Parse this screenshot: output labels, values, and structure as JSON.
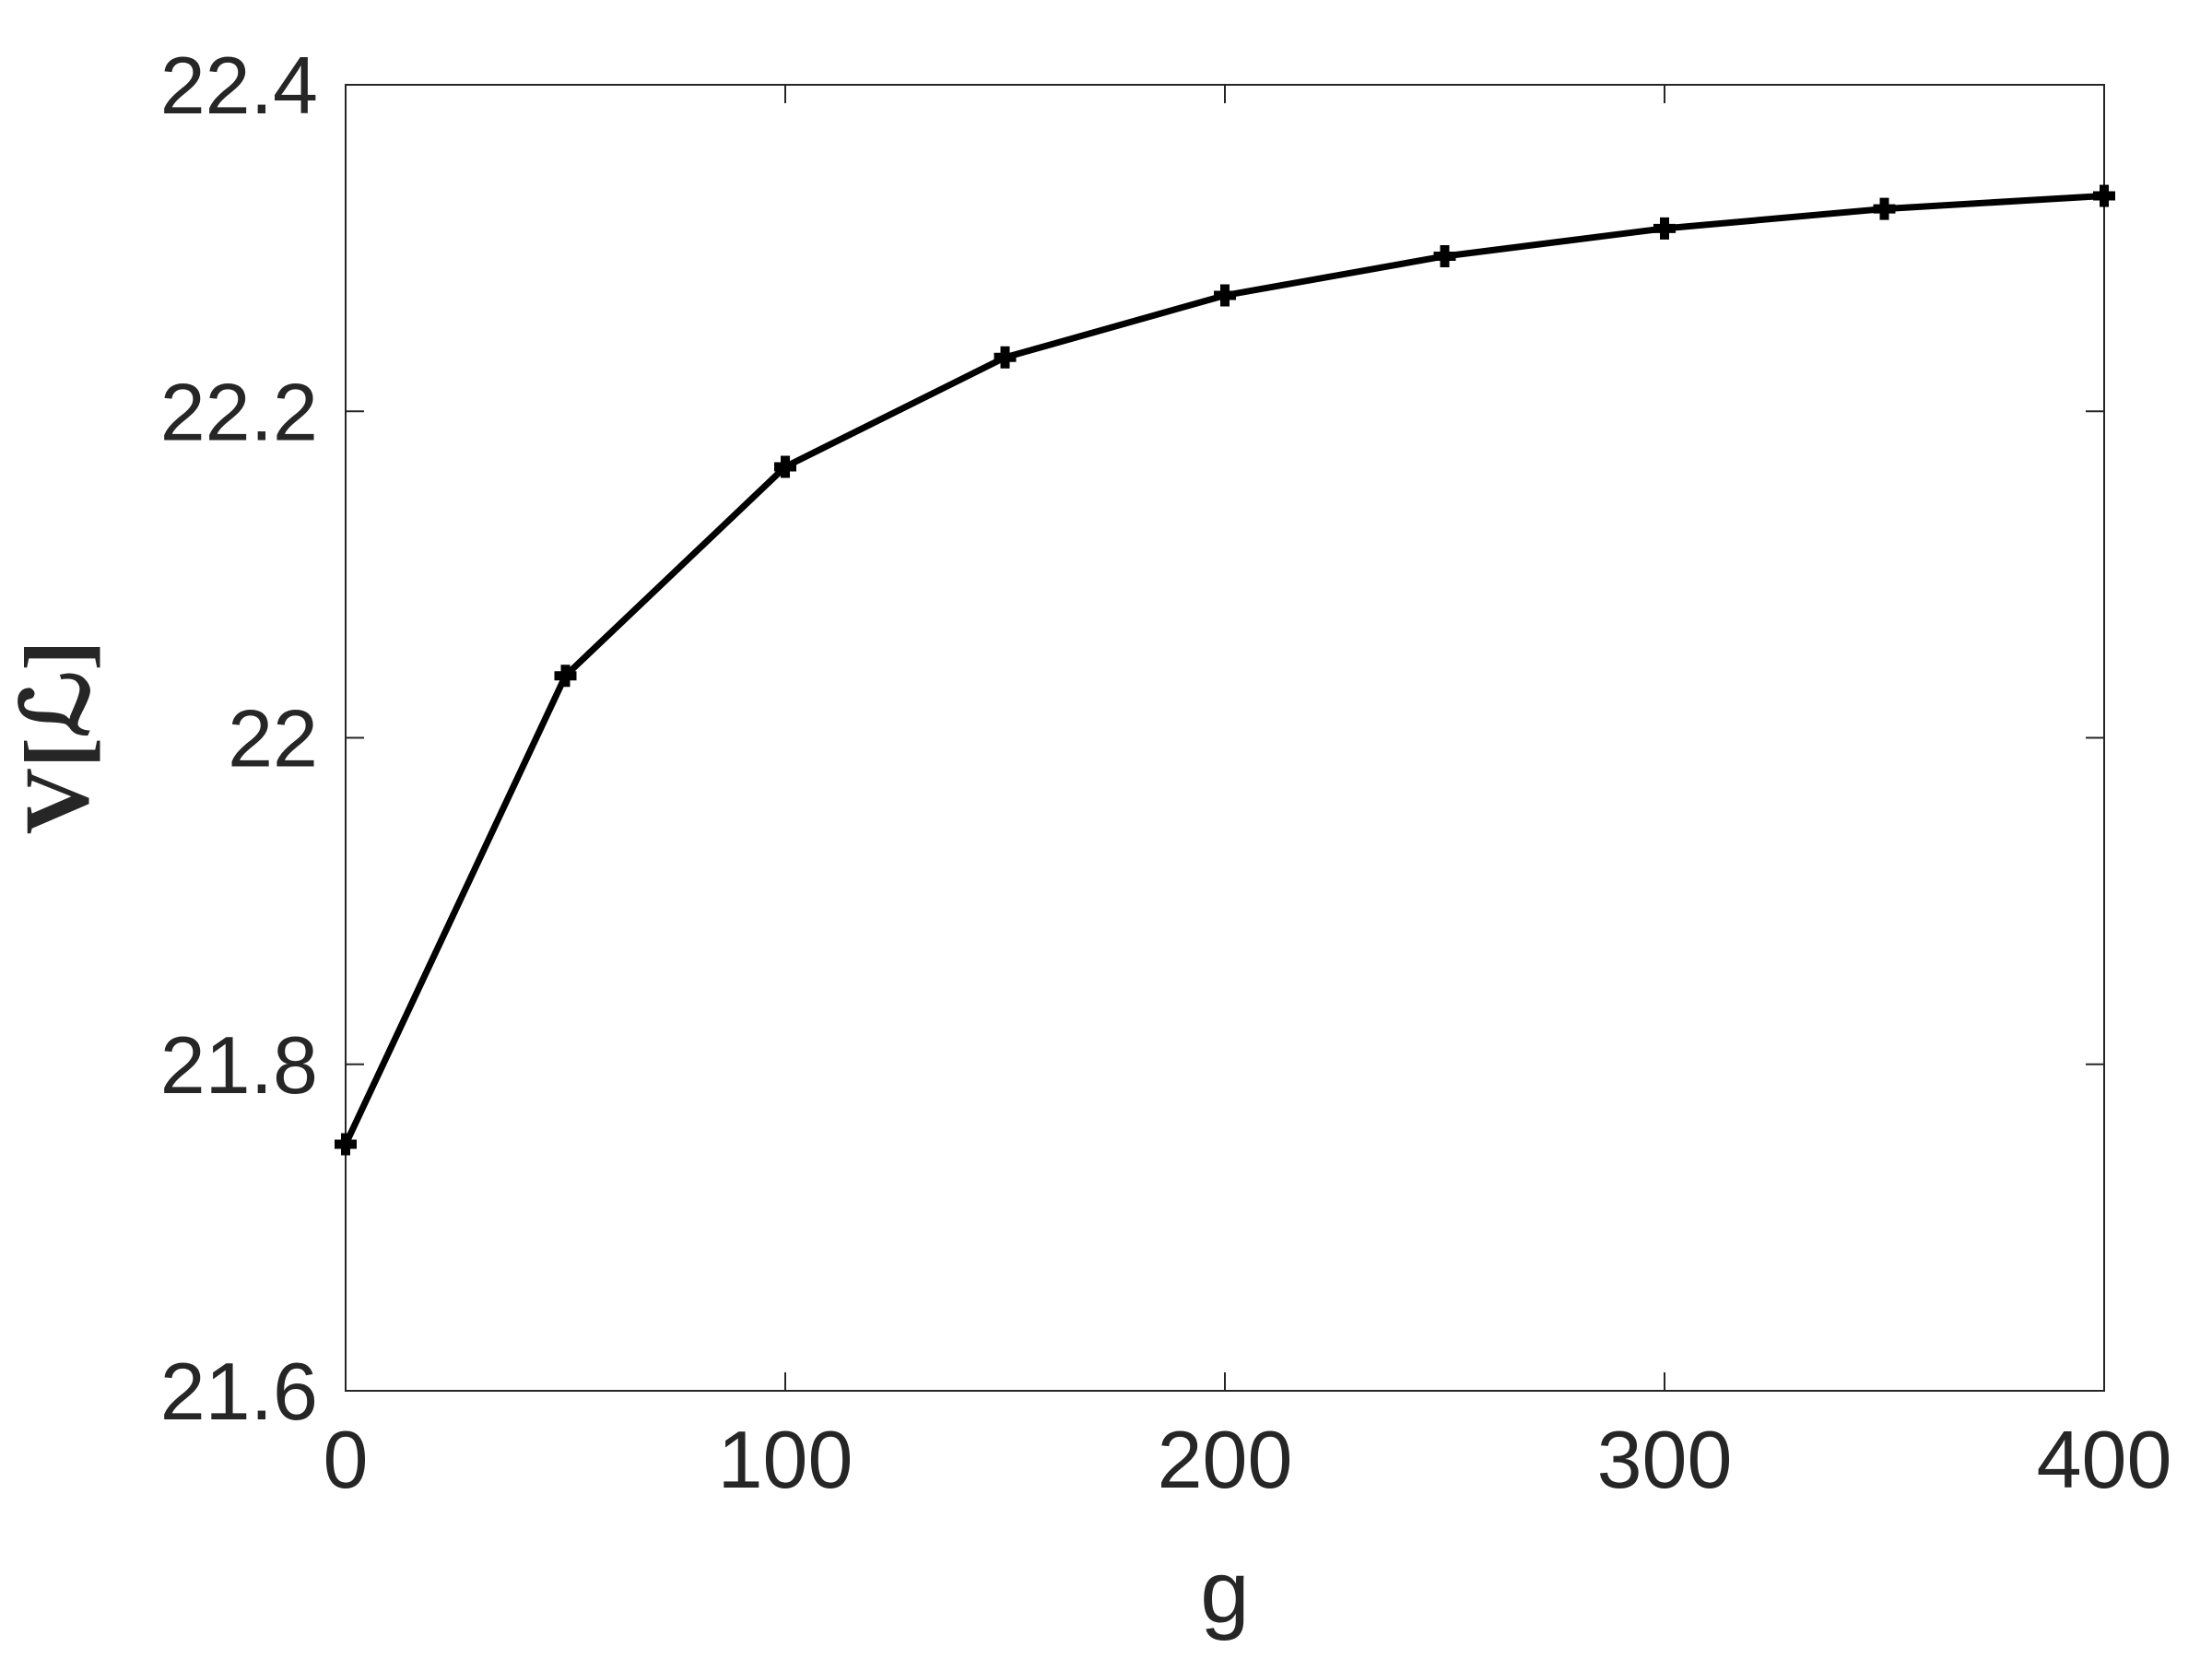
{
  "chart_data": {
    "type": "line",
    "x_label": "g",
    "y_label": "V[ℒ]",
    "x": [
      0,
      50,
      100,
      150,
      200,
      250,
      300,
      350,
      400
    ],
    "series": [
      {
        "color": "#000000",
        "values": [
          21.751,
          22.038,
          22.166,
          22.233,
          22.271,
          22.295,
          22.312,
          22.324,
          22.332
        ]
      }
    ],
    "xlim": [
      0,
      400
    ],
    "xticks": [
      0,
      100,
      200,
      300,
      400
    ],
    "ylim": [
      21.6,
      22.4
    ],
    "yticks": [
      21.6,
      21.8,
      22,
      22.2,
      22.4
    ],
    "grid": false
  }
}
